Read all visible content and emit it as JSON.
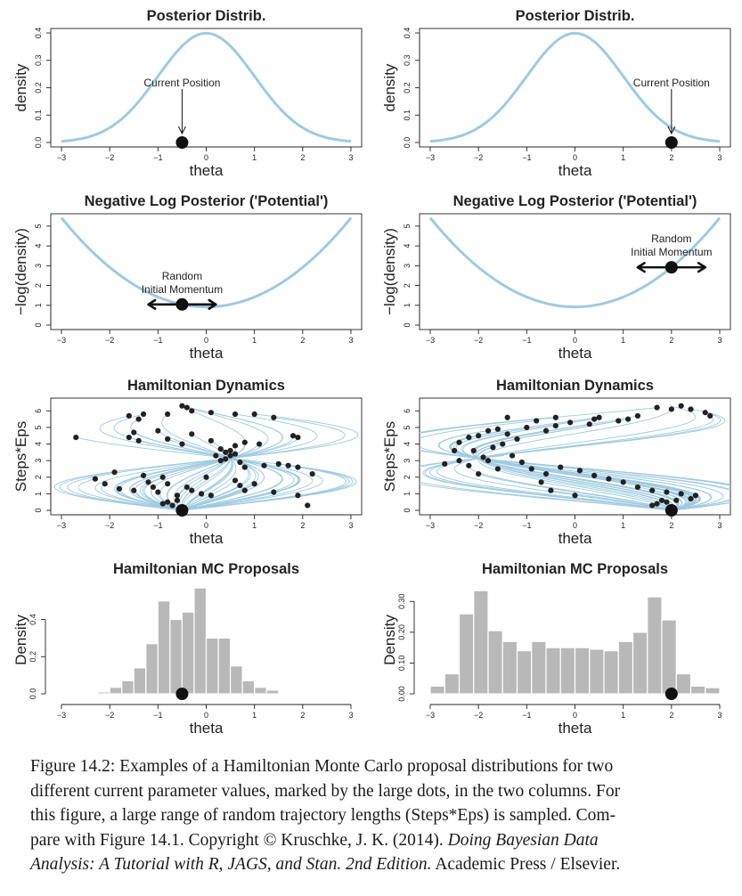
{
  "panels": [
    {
      "title": "Posterior Distrib.",
      "ylabel": "density",
      "xlabel": "theta",
      "xticks": [
        "−3",
        "−2",
        "−1",
        "0",
        "1",
        "2",
        "3"
      ],
      "yticks": [
        "0.0",
        "0.1",
        "0.2",
        "0.3",
        "0.4"
      ],
      "annotation": "Current Position"
    },
    {
      "title": "Posterior Distrib.",
      "ylabel": "density",
      "xlabel": "theta",
      "xticks": [
        "−3",
        "−2",
        "−1",
        "0",
        "1",
        "2",
        "3"
      ],
      "yticks": [
        "0.0",
        "0.1",
        "0.2",
        "0.3",
        "0.4"
      ],
      "annotation": "Current Position"
    },
    {
      "title": "Negative Log Posterior ('Potential')",
      "ylabel": "−log(density)",
      "xlabel": "theta",
      "xticks": [
        "−3",
        "−2",
        "−1",
        "0",
        "1",
        "2",
        "3"
      ],
      "yticks": [
        "0",
        "1",
        "2",
        "3",
        "4",
        "5"
      ],
      "annotation_line1": "Random",
      "annotation_line2": "Initial Momentum"
    },
    {
      "title": "Negative Log Posterior ('Potential')",
      "ylabel": "−log(density)",
      "xlabel": "theta",
      "xticks": [
        "−3",
        "−2",
        "−1",
        "0",
        "1",
        "2",
        "3"
      ],
      "yticks": [
        "0",
        "1",
        "2",
        "3",
        "4",
        "5"
      ],
      "annotation_line1": "Random",
      "annotation_line2": "Initial Momentum"
    },
    {
      "title": "Hamiltonian Dynamics",
      "ylabel": "Steps*Eps",
      "xlabel": "theta",
      "xticks": [
        "−3",
        "−2",
        "−1",
        "0",
        "1",
        "2",
        "3"
      ],
      "yticks": [
        "0",
        "1",
        "2",
        "3",
        "4",
        "5",
        "6"
      ]
    },
    {
      "title": "Hamiltonian Dynamics",
      "ylabel": "Steps*Eps",
      "xlabel": "theta",
      "xticks": [
        "−3",
        "−2",
        "−1",
        "0",
        "1",
        "2",
        "3"
      ],
      "yticks": [
        "0",
        "1",
        "2",
        "3",
        "4",
        "5",
        "6"
      ]
    },
    {
      "title": "Hamiltonian MC Proposals",
      "ylabel": "Density",
      "xlabel": "theta",
      "xticks": [
        "−3",
        "−2",
        "−1",
        "0",
        "1",
        "2",
        "3"
      ],
      "yticks": [
        "0.0",
        "0.2",
        "0.4"
      ]
    },
    {
      "title": "Hamiltonian MC Proposals",
      "ylabel": "Density",
      "xlabel": "theta",
      "xticks": [
        "−3",
        "−2",
        "−1",
        "0",
        "1",
        "2",
        "3"
      ],
      "yticks": [
        "0.00",
        "0.10",
        "0.20",
        "0.30"
      ]
    }
  ],
  "chart_data": [
    {
      "type": "line",
      "title": "Posterior Distrib.",
      "xlabel": "theta",
      "ylabel": "density",
      "xlim": [
        -3,
        3
      ],
      "ylim": [
        0,
        0.4
      ],
      "series": [
        {
          "function": "normal_density(mean=0, sd=1)"
        }
      ],
      "current_position": -0.5,
      "curve_color": "#9ecae1",
      "annotation": "Current Position"
    },
    {
      "type": "line",
      "title": "Posterior Distrib.",
      "xlabel": "theta",
      "ylabel": "density",
      "xlim": [
        -3,
        3
      ],
      "ylim": [
        0,
        0.4
      ],
      "series": [
        {
          "function": "normal_density(mean=0, sd=1)"
        }
      ],
      "current_position": 2.0,
      "curve_color": "#9ecae1",
      "annotation": "Current Position"
    },
    {
      "type": "line",
      "title": "Negative Log Posterior ('Potential')",
      "xlabel": "theta",
      "ylabel": "−log(density)",
      "xlim": [
        -3,
        3
      ],
      "ylim": [
        0,
        5.4
      ],
      "series": [
        {
          "function": "0.919 + theta^2/2"
        }
      ],
      "current_position": -0.5,
      "momentum_arrow": [
        -1.2,
        0.2
      ],
      "curve_color": "#9ecae1",
      "annotation": "Random Initial Momentum"
    },
    {
      "type": "line",
      "title": "Negative Log Posterior ('Potential')",
      "xlabel": "theta",
      "ylabel": "−log(density)",
      "xlim": [
        -3,
        3
      ],
      "ylim": [
        0,
        5.4
      ],
      "series": [
        {
          "function": "0.919 + theta^2/2"
        }
      ],
      "current_position": 2.0,
      "momentum_arrow": [
        1.3,
        2.7
      ],
      "curve_color": "#9ecae1",
      "annotation": "Random Initial Momentum"
    },
    {
      "type": "line",
      "title": "Hamiltonian Dynamics",
      "xlabel": "theta",
      "ylabel": "Steps*Eps",
      "xlim": [
        -3,
        3
      ],
      "ylim": [
        0,
        6.5
      ],
      "start": -0.5,
      "trajectory_endpoints": [
        [
          -1.6,
          5.7
        ],
        [
          -1.4,
          5.5
        ],
        [
          -1.3,
          5.8
        ],
        [
          -0.8,
          5.8
        ],
        [
          -0.5,
          6.3
        ],
        [
          -0.4,
          6.2
        ],
        [
          -0.3,
          6.0
        ],
        [
          0.1,
          5.9
        ],
        [
          0.6,
          5.8
        ],
        [
          1.0,
          5.8
        ],
        [
          1.4,
          5.6
        ],
        [
          -2.7,
          4.4
        ],
        [
          -1.6,
          4.4
        ],
        [
          -1.5,
          4.7
        ],
        [
          -1.4,
          4.2
        ],
        [
          -1.0,
          4.8
        ],
        [
          -0.8,
          4.3
        ],
        [
          -0.5,
          4.0
        ],
        [
          -0.3,
          4.6
        ],
        [
          0.1,
          4.2
        ],
        [
          0.3,
          3.7
        ],
        [
          0.4,
          3.5
        ],
        [
          0.5,
          3.3
        ],
        [
          0.6,
          3.9
        ],
        [
          0.8,
          4.1
        ],
        [
          1.1,
          4.0
        ],
        [
          1.8,
          4.5
        ],
        [
          1.9,
          4.4
        ],
        [
          0.2,
          3.3
        ],
        [
          0.3,
          3.0
        ],
        [
          0.4,
          3.1
        ],
        [
          0.5,
          3.6
        ],
        [
          0.6,
          3.4
        ],
        [
          0.7,
          2.9
        ],
        [
          0.8,
          2.6
        ],
        [
          1.2,
          2.7
        ],
        [
          1.5,
          2.8
        ],
        [
          1.7,
          2.7
        ],
        [
          1.9,
          2.6
        ],
        [
          2.2,
          2.2
        ],
        [
          -2.3,
          1.9
        ],
        [
          -2.1,
          1.6
        ],
        [
          -1.9,
          2.3
        ],
        [
          -1.8,
          1.3
        ],
        [
          -1.5,
          1.2
        ],
        [
          -1.3,
          2.1
        ],
        [
          -1.2,
          1.7
        ],
        [
          -1.1,
          1.4
        ],
        [
          -1.0,
          1.1
        ],
        [
          -0.9,
          2.0
        ],
        [
          -0.8,
          1.6
        ],
        [
          -0.6,
          0.9
        ],
        [
          -0.4,
          1.4
        ],
        [
          -0.3,
          1.2
        ],
        [
          -0.1,
          1.0
        ],
        [
          0.0,
          2.0
        ],
        [
          0.1,
          0.9
        ],
        [
          0.6,
          1.8
        ],
        [
          0.7,
          1.5
        ],
        [
          0.8,
          1.2
        ],
        [
          1.0,
          1.6
        ],
        [
          1.4,
          1.1
        ],
        [
          1.9,
          0.9
        ],
        [
          2.1,
          0.3
        ],
        [
          -0.9,
          0.4
        ],
        [
          -0.8,
          0.5
        ],
        [
          -0.7,
          0.3
        ],
        [
          -0.6,
          0.6
        ],
        [
          -0.5,
          0.2
        ]
      ],
      "curve_color": "#9ecae1"
    },
    {
      "type": "line",
      "title": "Hamiltonian Dynamics",
      "xlabel": "theta",
      "ylabel": "Steps*Eps",
      "xlim": [
        -3,
        3
      ],
      "ylim": [
        0,
        6.5
      ],
      "start": 2.0,
      "trajectory_endpoints": [
        [
          1.7,
          6.2
        ],
        [
          2.0,
          6.1
        ],
        [
          2.2,
          6.3
        ],
        [
          2.4,
          6.1
        ],
        [
          2.7,
          5.9
        ],
        [
          2.8,
          5.7
        ],
        [
          1.3,
          5.7
        ],
        [
          1.1,
          5.5
        ],
        [
          0.9,
          5.4
        ],
        [
          0.5,
          5.6
        ],
        [
          0.4,
          5.5
        ],
        [
          0.3,
          5.2
        ],
        [
          -0.4,
          5.6
        ],
        [
          -0.1,
          5.3
        ],
        [
          -0.4,
          5.1
        ],
        [
          -0.6,
          4.8
        ],
        [
          -0.8,
          5.4
        ],
        [
          -1.0,
          5.0
        ],
        [
          -1.4,
          5.6
        ],
        [
          -1.6,
          4.9
        ],
        [
          -1.8,
          4.8
        ],
        [
          -2.0,
          4.5
        ],
        [
          -2.2,
          4.4
        ],
        [
          -2.4,
          4.1
        ],
        [
          -1.4,
          4.6
        ],
        [
          -1.2,
          4.3
        ],
        [
          -1.5,
          4.0
        ],
        [
          -1.7,
          3.8
        ],
        [
          -2.1,
          3.6
        ],
        [
          -1.9,
          3.2
        ],
        [
          -2.5,
          3.6
        ],
        [
          -1.8,
          3.0
        ],
        [
          -2.2,
          2.7
        ],
        [
          -1.6,
          2.5
        ],
        [
          -1.3,
          3.3
        ],
        [
          -1.1,
          2.9
        ],
        [
          -0.9,
          2.5
        ],
        [
          -0.6,
          2.2
        ],
        [
          -0.3,
          2.6
        ],
        [
          0.1,
          2.4
        ],
        [
          0.4,
          2.1
        ],
        [
          0.7,
          1.9
        ],
        [
          1.0,
          1.7
        ],
        [
          1.3,
          1.4
        ],
        [
          1.6,
          1.2
        ],
        [
          1.9,
          1.1
        ],
        [
          2.2,
          1.0
        ],
        [
          2.5,
          0.9
        ],
        [
          1.8,
          0.6
        ],
        [
          2.4,
          0.7
        ],
        [
          0.0,
          0.9
        ],
        [
          -0.5,
          1.2
        ],
        [
          -0.7,
          1.7
        ],
        [
          -2.7,
          2.8
        ],
        [
          -2.4,
          3.0
        ],
        [
          -2.0,
          2.2
        ],
        [
          1.6,
          0.3
        ],
        [
          1.7,
          0.4
        ],
        [
          1.9,
          0.5
        ],
        [
          2.0,
          0.2
        ],
        [
          2.1,
          0.6
        ]
      ],
      "curve_color": "#9ecae1"
    },
    {
      "type": "bar",
      "title": "Hamiltonian MC Proposals",
      "xlabel": "theta",
      "ylabel": "Density",
      "xlim": [
        -3,
        3
      ],
      "ylim": [
        0,
        0.58
      ],
      "bin_edges": [
        -2.75,
        -2.5,
        -2.25,
        -2.0,
        -1.75,
        -1.5,
        -1.25,
        -1.0,
        -0.75,
        -0.5,
        -0.25,
        0.0,
        0.25,
        0.5,
        0.75,
        1.0,
        1.25,
        1.5,
        1.75,
        2.0,
        2.25,
        2.5
      ],
      "values": [
        0.003,
        0.005,
        0.01,
        0.035,
        0.07,
        0.14,
        0.27,
        0.5,
        0.4,
        0.44,
        0.57,
        0.3,
        0.3,
        0.15,
        0.07,
        0.035,
        0.02,
        0.005,
        0.003,
        0.002,
        0.002
      ],
      "current_position": -0.5,
      "bar_color": "#b8b8b8"
    },
    {
      "type": "bar",
      "title": "Hamiltonian MC Proposals",
      "xlabel": "theta",
      "ylabel": "Density",
      "xlim": [
        -3,
        3
      ],
      "ylim": [
        0,
        0.35
      ],
      "bin_edges": [
        -3.0,
        -2.7,
        -2.4,
        -2.1,
        -1.8,
        -1.5,
        -1.2,
        -0.9,
        -0.6,
        -0.3,
        0.0,
        0.3,
        0.6,
        0.9,
        1.2,
        1.5,
        1.8,
        2.1,
        2.4,
        2.7,
        3.0
      ],
      "values": [
        0.025,
        0.065,
        0.26,
        0.335,
        0.205,
        0.17,
        0.14,
        0.17,
        0.15,
        0.15,
        0.15,
        0.145,
        0.14,
        0.17,
        0.2,
        0.315,
        0.24,
        0.065,
        0.025,
        0.02
      ],
      "current_position": 2.0,
      "bar_color": "#b8b8b8"
    }
  ],
  "caption": {
    "lines": [
      "Figure 14.2: Examples of a Hamiltonian Monte Carlo proposal distributions for two",
      "different current parameter values, marked by the large dots, in the two columns. For",
      "this figure, a large range of random trajectory lengths (Steps*Eps) is sampled. Com-",
      "pare with Figure 14.1.   Copyright © Kruschke, J. K. (2014).",
      "Doing Bayesian Data",
      "Analysis: A Tutorial with R, JAGS, and Stan. 2nd Edition.",
      "Academic Press / Elsevier."
    ]
  }
}
